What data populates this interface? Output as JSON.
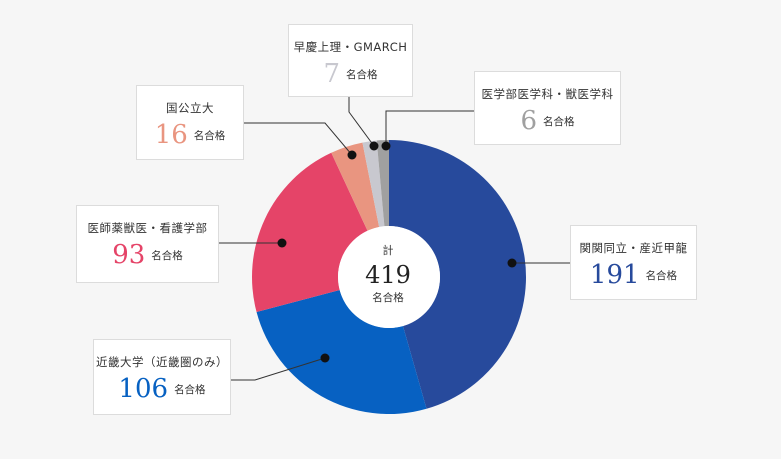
{
  "chart_data": {
    "type": "pie",
    "center": {
      "title": "計",
      "total": "419",
      "unit": "名合格"
    },
    "slices": [
      {
        "label": "関関同立・産近甲龍",
        "value": 191,
        "unit": "名合格",
        "color": "#274a9c"
      },
      {
        "label": "近畿大学（近畿圏のみ）",
        "value": 106,
        "unit": "名合格",
        "color": "#0761c2"
      },
      {
        "label": "医師薬獣医・看護学部",
        "value": 93,
        "unit": "名合格",
        "color": "#e54468"
      },
      {
        "label": "国公立大",
        "value": 16,
        "unit": "名合格",
        "color": "#e99580"
      },
      {
        "label": "早慶上理・GMARCH",
        "value": 7,
        "unit": "名合格",
        "color": "#c8c8cf"
      },
      {
        "label": "医学部医学科・獣医学科",
        "value": 6,
        "unit": "名合格",
        "color": "#a0a0a0"
      }
    ]
  }
}
